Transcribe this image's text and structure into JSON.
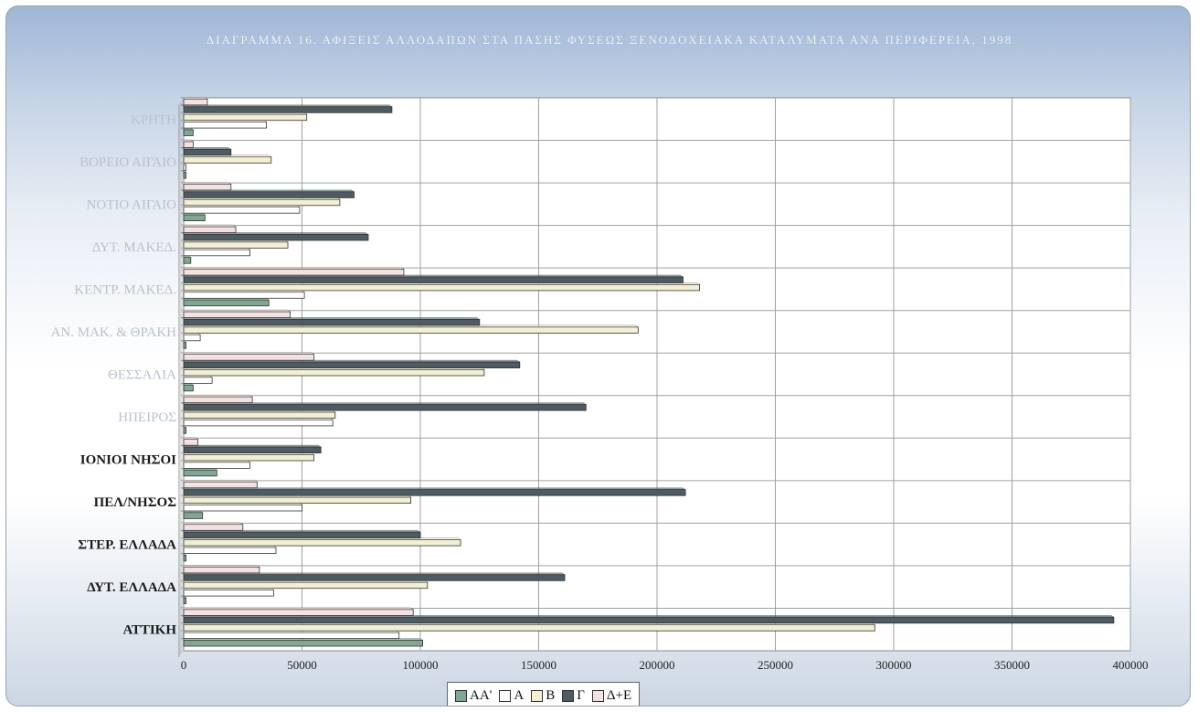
{
  "chart_data": {
    "type": "bar",
    "orientation": "horizontal",
    "title": "ΔΙΑΓΡΑΜΜΑ 16. ΑΦΙΞΕΙΣ ΑΛΛΟΔΑΠΩΝ ΣΤΑ ΠΑΣΗΣ ΦΥΣΕΩΣ ΞΕΝΟΔΟΧΕΙΑΚΑ ΚΑΤΑΛΥΜΑΤΑ ΑΝΑ ΠΕΡΙΦΕΡΕΙΑ, 1998",
    "categories": [
      "ΑΤΤΙΚΗ",
      "ΔΥΤ. ΕΛΛΑΔΑ",
      "ΣΤΕΡ. ΕΛΛΑΔΑ",
      "ΠΕΛ/ΝΗΣΟΣ",
      "ΙΟΝΙΟΙ ΝΗΣΟΙ",
      "ΗΠΕΙΡΟΣ",
      "ΘΕΣΣΑΛΙΑ",
      "ΑΝ. ΜΑΚ. & ΘΡΑΚΗ",
      "ΚΕΝΤΡ. ΜΑΚΕΔ.",
      "ΔΥΤ. ΜΑΚΕΔ.",
      "ΝΟΤΙΟ ΑΙΓΑΙΟ",
      "ΒΟΡΕΙΟ ΑΙΓΑΙΟ",
      "ΚΡΗΤΗ"
    ],
    "category_label_style": [
      "bold",
      "bold",
      "bold",
      "bold",
      "bold",
      "faded",
      "faded",
      "faded",
      "faded",
      "faded",
      "faded",
      "faded",
      "faded"
    ],
    "series": [
      {
        "name": "ΑΑ'",
        "values": [
          101000,
          1000,
          1000,
          8000,
          14000,
          1000,
          4000,
          1000,
          36000,
          3000,
          9000,
          1000,
          4000
        ]
      },
      {
        "name": "Α",
        "values": [
          91000,
          38000,
          39000,
          50000,
          28000,
          63000,
          12000,
          7000,
          51000,
          28000,
          49000,
          1000,
          35000
        ]
      },
      {
        "name": "Β",
        "values": [
          292000,
          103000,
          117000,
          96000,
          55000,
          64000,
          127000,
          192000,
          218000,
          44000,
          66000,
          37000,
          52000
        ]
      },
      {
        "name": "Γ",
        "values": [
          393000,
          161000,
          100000,
          212000,
          58000,
          170000,
          142000,
          125000,
          211000,
          78000,
          72000,
          20000,
          88000
        ]
      },
      {
        "name": "Δ+Ε",
        "values": [
          97000,
          32000,
          25000,
          31000,
          6000,
          29000,
          55000,
          45000,
          93000,
          22000,
          20000,
          4000,
          10000
        ]
      }
    ],
    "xlim": [
      0,
      400000
    ],
    "x_ticks": [
      "0",
      "50000",
      "100000",
      "150000",
      "200000",
      "250000",
      "300000",
      "350000",
      "400000"
    ],
    "x_tick_values": [
      0,
      50000,
      100000,
      150000,
      200000,
      250000,
      300000,
      350000,
      400000
    ],
    "grid": true,
    "legend_position": "bottom",
    "colors": {
      "ΑΑ'": "#7fa892",
      "Α": "#ffffff",
      "Β": "#f3efd2",
      "Γ": "#4d5c62",
      "Δ+Ε": "#f4e2e2",
      "gridline": "#a0a0a0",
      "plot_area": "#ffffff",
      "title": "#f1f5fb",
      "bar_border": "#333333"
    }
  }
}
